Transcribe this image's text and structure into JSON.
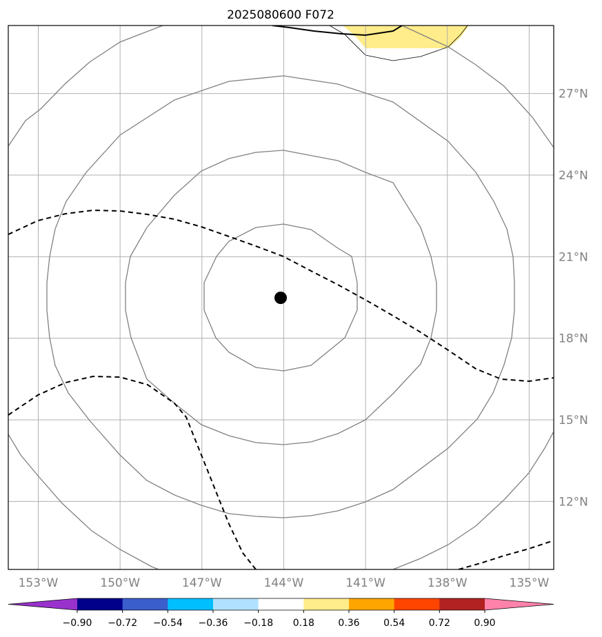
{
  "title": "2025080600 F072",
  "map": {
    "lon_labels": [
      "153°W",
      "150°W",
      "147°W",
      "144°W",
      "141°W",
      "138°W",
      "135°W"
    ],
    "lon_values": [
      -153,
      -150,
      -147,
      -144,
      -141,
      -138,
      -135
    ],
    "lat_labels": [
      "27°N",
      "24°N",
      "21°N",
      "18°N",
      "15°N",
      "12°N"
    ],
    "lat_values": [
      27,
      24,
      21,
      18,
      15,
      12
    ],
    "lon_range": [
      -154.1,
      -134.1
    ],
    "lat_range": [
      9.5,
      29.5
    ],
    "center": {
      "lon": -144.1,
      "lat": 19.5
    },
    "gridline_color": "#b0b0b0",
    "contour_color": "#808080"
  },
  "colorbar": {
    "tick_labels": [
      "−0.90",
      "−0.72",
      "−0.54",
      "−0.36",
      "−0.18",
      "0.18",
      "0.36",
      "0.54",
      "0.72",
      "0.90"
    ],
    "colors": [
      "#9932cc",
      "#00008b",
      "#3a5fcd",
      "#00bfff",
      "#b0e2ff",
      "#ffffff",
      "#ffec8b",
      "#ffa500",
      "#ff4500",
      "#b22222",
      "#ff82ab"
    ]
  }
}
